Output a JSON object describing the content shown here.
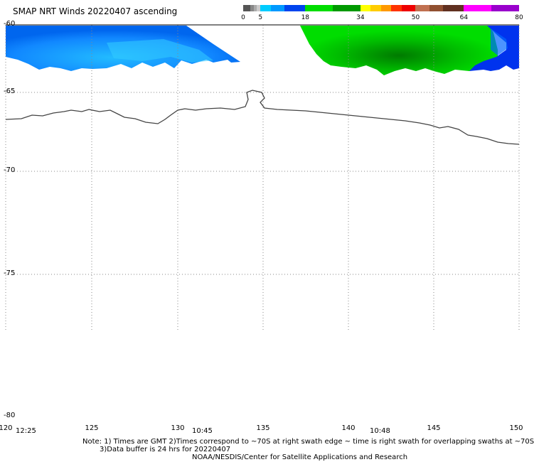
{
  "title": "SMAP NRT Winds 20220407 ascending",
  "colorbar": {
    "ticks": [
      "0",
      "5",
      "18",
      "34",
      "50",
      "64",
      "80"
    ],
    "segments": [
      {
        "from": 0,
        "to": 2,
        "color": "#555555"
      },
      {
        "from": 2,
        "to": 3,
        "color": "#888888"
      },
      {
        "from": 3,
        "to": 4,
        "color": "#aaaaaa"
      },
      {
        "from": 4,
        "to": 5,
        "color": "#cccccc"
      },
      {
        "from": 5,
        "to": 8,
        "color": "#00ccff"
      },
      {
        "from": 8,
        "to": 12,
        "color": "#0099ff"
      },
      {
        "from": 12,
        "to": 18,
        "color": "#0044ee"
      },
      {
        "from": 18,
        "to": 26,
        "color": "#00dd00"
      },
      {
        "from": 26,
        "to": 34,
        "color": "#009900"
      },
      {
        "from": 34,
        "to": 37,
        "color": "#ffff00"
      },
      {
        "from": 37,
        "to": 40,
        "color": "#ffcc00"
      },
      {
        "from": 40,
        "to": 43,
        "color": "#ff9900"
      },
      {
        "from": 43,
        "to": 46,
        "color": "#ff3300"
      },
      {
        "from": 46,
        "to": 50,
        "color": "#ee0000"
      },
      {
        "from": 50,
        "to": 54,
        "color": "#c07050"
      },
      {
        "from": 54,
        "to": 58,
        "color": "#905030"
      },
      {
        "from": 58,
        "to": 64,
        "color": "#603020"
      },
      {
        "from": 64,
        "to": 72,
        "color": "#ff00ff"
      },
      {
        "from": 72,
        "to": 80,
        "color": "#9900cc"
      }
    ]
  },
  "map": {
    "lon_range": [
      120,
      150
    ],
    "lat_range": [
      -60,
      -80
    ],
    "lon_labels": [
      "120",
      "125",
      "130",
      "135",
      "140",
      "145",
      "150"
    ],
    "lat_labels": [
      "-60",
      "-65",
      "-70",
      "-75",
      "-80"
    ],
    "times": [
      "12:25",
      "10:45",
      "10:48"
    ]
  },
  "notes": {
    "line1": "Note: 1) Times are GMT 2)Times correspond to ~70S at right swath edge ~ time is right swath for overlapping swaths at ~70S",
    "line2": "3)Data buffer is 24 hrs for 20220407",
    "line3": "NOAA/NESDIS/Center for Satellite Applications and Research"
  },
  "colors": {
    "low_wind": "#33aaff",
    "moderate_wind": "#0055ee",
    "gale_wind": "#00dd00",
    "strong_gale": "#008800",
    "coastline": "#444444",
    "grid": "#888888"
  }
}
